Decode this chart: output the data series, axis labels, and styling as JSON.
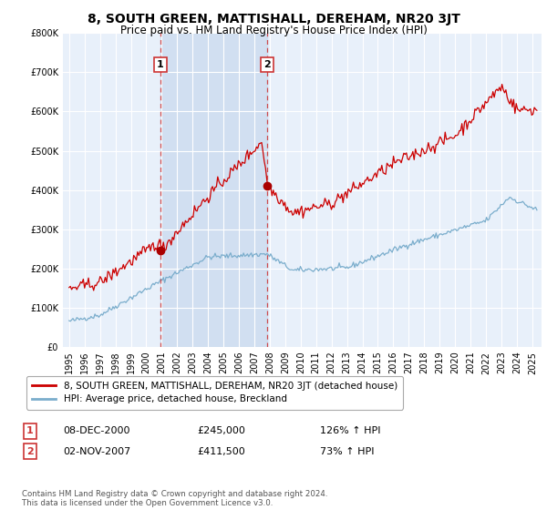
{
  "title": "8, SOUTH GREEN, MATTISHALL, DEREHAM, NR20 3JT",
  "subtitle": "Price paid vs. HM Land Registry's House Price Index (HPI)",
  "title_fontsize": 10,
  "subtitle_fontsize": 8.5,
  "background_color": "#ffffff",
  "plot_bg_color": "#dce8f5",
  "plot_bg_color2": "#e8f0fa",
  "shade_color": "#c8d8ee",
  "grid_color": "#ffffff",
  "sale1_date_str": "08-DEC-2000",
  "sale1_price": 245000,
  "sale1_price_str": "£245,000",
  "sale1_pct_str": "126% ↑ HPI",
  "sale2_date_str": "02-NOV-2007",
  "sale2_price": 411500,
  "sale2_price_str": "£411,500",
  "sale2_pct_str": "73% ↑ HPI",
  "red_line_color": "#cc0000",
  "blue_line_color": "#7aadcc",
  "vline_color": "#cc3333",
  "marker_color": "#aa0000",
  "tick_fontsize": 7,
  "legend_label_red": "8, SOUTH GREEN, MATTISHALL, DEREHAM, NR20 3JT (detached house)",
  "legend_label_blue": "HPI: Average price, detached house, Breckland",
  "footer": "Contains HM Land Registry data © Crown copyright and database right 2024.\nThis data is licensed under the Open Government Licence v3.0.",
  "ylim": [
    0,
    800000
  ],
  "yticks": [
    0,
    100000,
    200000,
    300000,
    400000,
    500000,
    600000,
    700000,
    800000
  ],
  "ytick_labels": [
    "£0",
    "£100K",
    "£200K",
    "£300K",
    "£400K",
    "£500K",
    "£600K",
    "£700K",
    "£800K"
  ]
}
